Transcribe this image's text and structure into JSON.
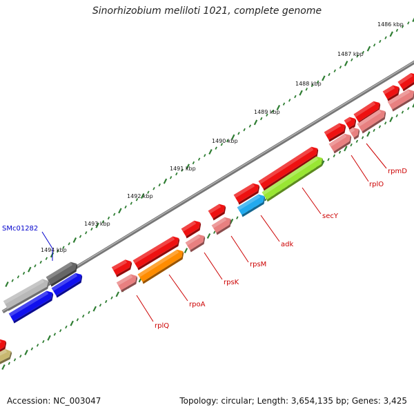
{
  "title": "Sinorhizobium meliloti 1021, complete genome",
  "footer": {
    "accession": "Accession: NC_003047",
    "summary": "Topology: circular; Length: 3,654,135 bp; Genes: 3,425"
  },
  "ruler": [
    {
      "label": "1486 kbp"
    },
    {
      "label": "1487 kbp"
    },
    {
      "label": "1488 kbp"
    },
    {
      "label": "1489 kbp"
    },
    {
      "label": "1490 kbp"
    },
    {
      "label": "1491 kbp"
    },
    {
      "label": "1492 kbp"
    },
    {
      "label": "1493 kbp"
    },
    {
      "label": "1494 kbp"
    }
  ],
  "gene_labels": [
    {
      "name": "SMc01282",
      "color": "#0000cc"
    },
    {
      "name": "rplQ",
      "color": "#cc0000"
    },
    {
      "name": "rpoA",
      "color": "#cc0000"
    },
    {
      "name": "rpsK",
      "color": "#cc0000"
    },
    {
      "name": "rpsM",
      "color": "#cc0000"
    },
    {
      "name": "adk",
      "color": "#cc0000"
    },
    {
      "name": "secY",
      "color": "#cc0000"
    },
    {
      "name": "rplO",
      "color": "#cc0000"
    },
    {
      "name": "rpmD",
      "color": "#cc0000"
    }
  ],
  "colors": {
    "backbone": "#777777",
    "tick": "#2e7d32",
    "gene_red": "#ee1111",
    "gene_pink": "#e88080",
    "gene_blue": "#1010ee",
    "gene_gray": "#b8b8b8",
    "gene_darkgray": "#666666",
    "gene_orange": "#ff8c00",
    "gene_green": "#99e633",
    "gene_cyan": "#22aaee",
    "gene_olive": "#c8b870"
  }
}
